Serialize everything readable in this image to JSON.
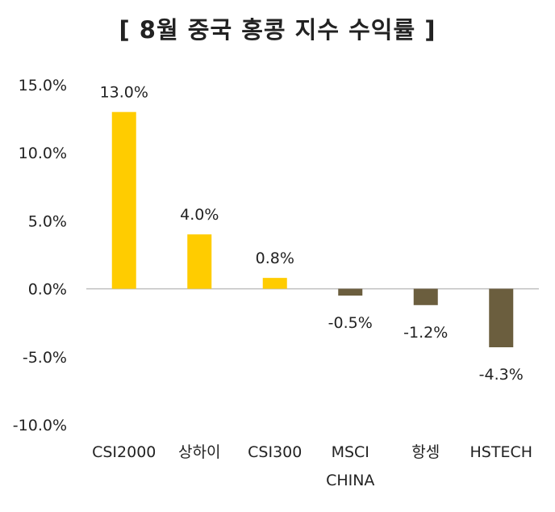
{
  "chart_data": {
    "type": "bar",
    "title": "[ 8월 중국 홍콩 지수 수익률 ]",
    "categories": [
      [
        "CSI2000"
      ],
      [
        "상하이"
      ],
      [
        "CSI300"
      ],
      [
        "MSCI",
        "CHINA"
      ],
      [
        "항셍"
      ],
      [
        "HSTECH"
      ]
    ],
    "values": [
      13.0,
      4.0,
      0.8,
      -0.5,
      -1.2,
      -4.3
    ],
    "data_labels": [
      "13.0%",
      "4.0%",
      "0.8%",
      "-0.5%",
      "-1.2%",
      "-4.3%"
    ],
    "ylim": [
      -10,
      15
    ],
    "yticks": [
      15,
      10,
      5,
      0,
      -5,
      -10
    ],
    "ytick_labels": [
      "15.0%",
      "10.0%",
      "5.0%",
      "0.0%",
      "-5.0%",
      "-10.0%"
    ],
    "xlabel": "",
    "ylabel": "",
    "grid": false,
    "colors": {
      "positive": "#FFCC00",
      "negative": "#6B5E3E",
      "axis": "#BFBFBF",
      "text": "#222222"
    }
  }
}
